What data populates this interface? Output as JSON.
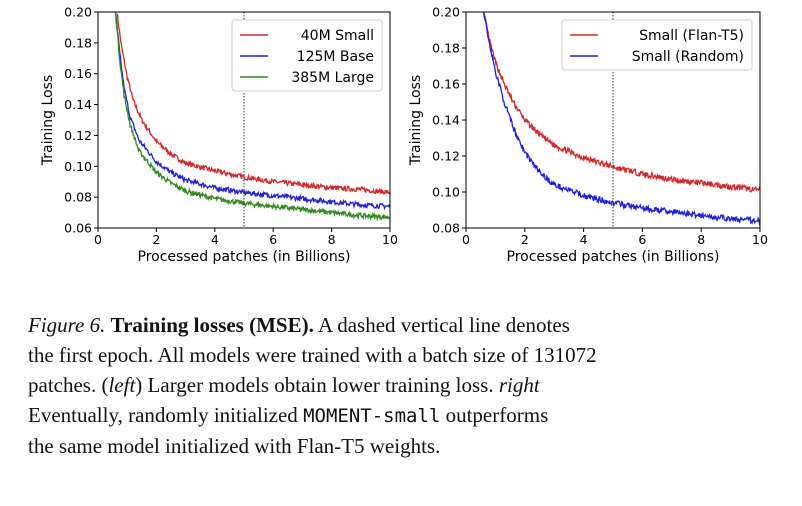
{
  "chart_data": [
    {
      "type": "line",
      "xlabel": "Processed patches (in Billions)",
      "ylabel": "Training Loss",
      "xlim": [
        0,
        10
      ],
      "ylim": [
        0.06,
        0.2
      ],
      "xticks": [
        "0",
        "2",
        "4",
        "6",
        "8",
        "10"
      ],
      "yticks": [
        "0.06",
        "0.08",
        "0.10",
        "0.12",
        "0.14",
        "0.16",
        "0.18",
        "0.20"
      ],
      "grid": false,
      "legend": "top-right",
      "epoch_line_x": 5,
      "series": [
        {
          "name": "40M Small",
          "color": "#d62728",
          "x": [
            0.65,
            0.8,
            1.0,
            1.2,
            1.5,
            2.0,
            2.5,
            3.0,
            4.0,
            5.0,
            6.0,
            7.0,
            8.0,
            9.0,
            10.0
          ],
          "y": [
            0.2,
            0.178,
            0.158,
            0.143,
            0.13,
            0.116,
            0.108,
            0.102,
            0.097,
            0.093,
            0.09,
            0.088,
            0.086,
            0.085,
            0.083
          ]
        },
        {
          "name": "125M Base",
          "color": "#1f1fdd",
          "x": [
            0.6,
            0.75,
            0.9,
            1.1,
            1.4,
            2.0,
            2.5,
            3.0,
            4.0,
            5.0,
            6.0,
            7.0,
            8.0,
            9.0,
            10.0
          ],
          "y": [
            0.2,
            0.172,
            0.15,
            0.132,
            0.117,
            0.103,
            0.096,
            0.091,
            0.086,
            0.083,
            0.081,
            0.079,
            0.077,
            0.075,
            0.074
          ]
        },
        {
          "name": "385M Large",
          "color": "#2e8b1e",
          "x": [
            0.6,
            0.75,
            0.9,
            1.1,
            1.4,
            2.0,
            2.5,
            3.0,
            4.0,
            5.0,
            6.0,
            7.0,
            8.0,
            9.0,
            10.0
          ],
          "y": [
            0.2,
            0.168,
            0.145,
            0.127,
            0.11,
            0.096,
            0.089,
            0.084,
            0.079,
            0.076,
            0.074,
            0.072,
            0.07,
            0.068,
            0.067
          ]
        }
      ]
    },
    {
      "type": "line",
      "xlabel": "Processed patches (in Billions)",
      "ylabel": "Training Loss",
      "xlim": [
        0,
        10
      ],
      "ylim": [
        0.08,
        0.2
      ],
      "xticks": [
        "0",
        "2",
        "4",
        "6",
        "8",
        "10"
      ],
      "yticks": [
        "0.08",
        "0.10",
        "0.12",
        "0.14",
        "0.16",
        "0.18",
        "0.20"
      ],
      "grid": false,
      "legend": "top-right",
      "epoch_line_x": 5,
      "series": [
        {
          "name": "Small (Flan-T5)",
          "color": "#d62728",
          "x": [
            0.6,
            0.8,
            1.0,
            1.3,
            1.6,
            2.0,
            2.5,
            3.0,
            4.0,
            5.0,
            6.0,
            7.0,
            8.0,
            9.0,
            10.0
          ],
          "y": [
            0.2,
            0.184,
            0.172,
            0.16,
            0.15,
            0.14,
            0.132,
            0.126,
            0.119,
            0.114,
            0.11,
            0.107,
            0.105,
            0.103,
            0.101
          ]
        },
        {
          "name": "Small (Random)",
          "color": "#1f1fdd",
          "x": [
            0.6,
            0.8,
            1.0,
            1.3,
            1.6,
            2.0,
            2.5,
            3.0,
            4.0,
            5.0,
            6.0,
            7.0,
            8.0,
            9.0,
            10.0
          ],
          "y": [
            0.2,
            0.182,
            0.167,
            0.15,
            0.136,
            0.122,
            0.111,
            0.104,
            0.098,
            0.094,
            0.091,
            0.089,
            0.087,
            0.085,
            0.084
          ]
        }
      ]
    }
  ],
  "caption": {
    "figure_label": "Figure 6.",
    "title": "Training losses (MSE).",
    "line1_rest": "A dashed vertical line denotes",
    "line2": "the first epoch. All models were trained with a batch size of 131072",
    "line3_a": "patches. (",
    "line3_left": "left",
    "line3_b": ") Larger models obtain lower training loss.",
    "line3_right": "right",
    "line4_a": "Eventually, randomly initialized",
    "line4_code": "MOMENT-small",
    "line4_b": "outperforms",
    "line5": "the same model initialized with Flan-T5 weights."
  }
}
